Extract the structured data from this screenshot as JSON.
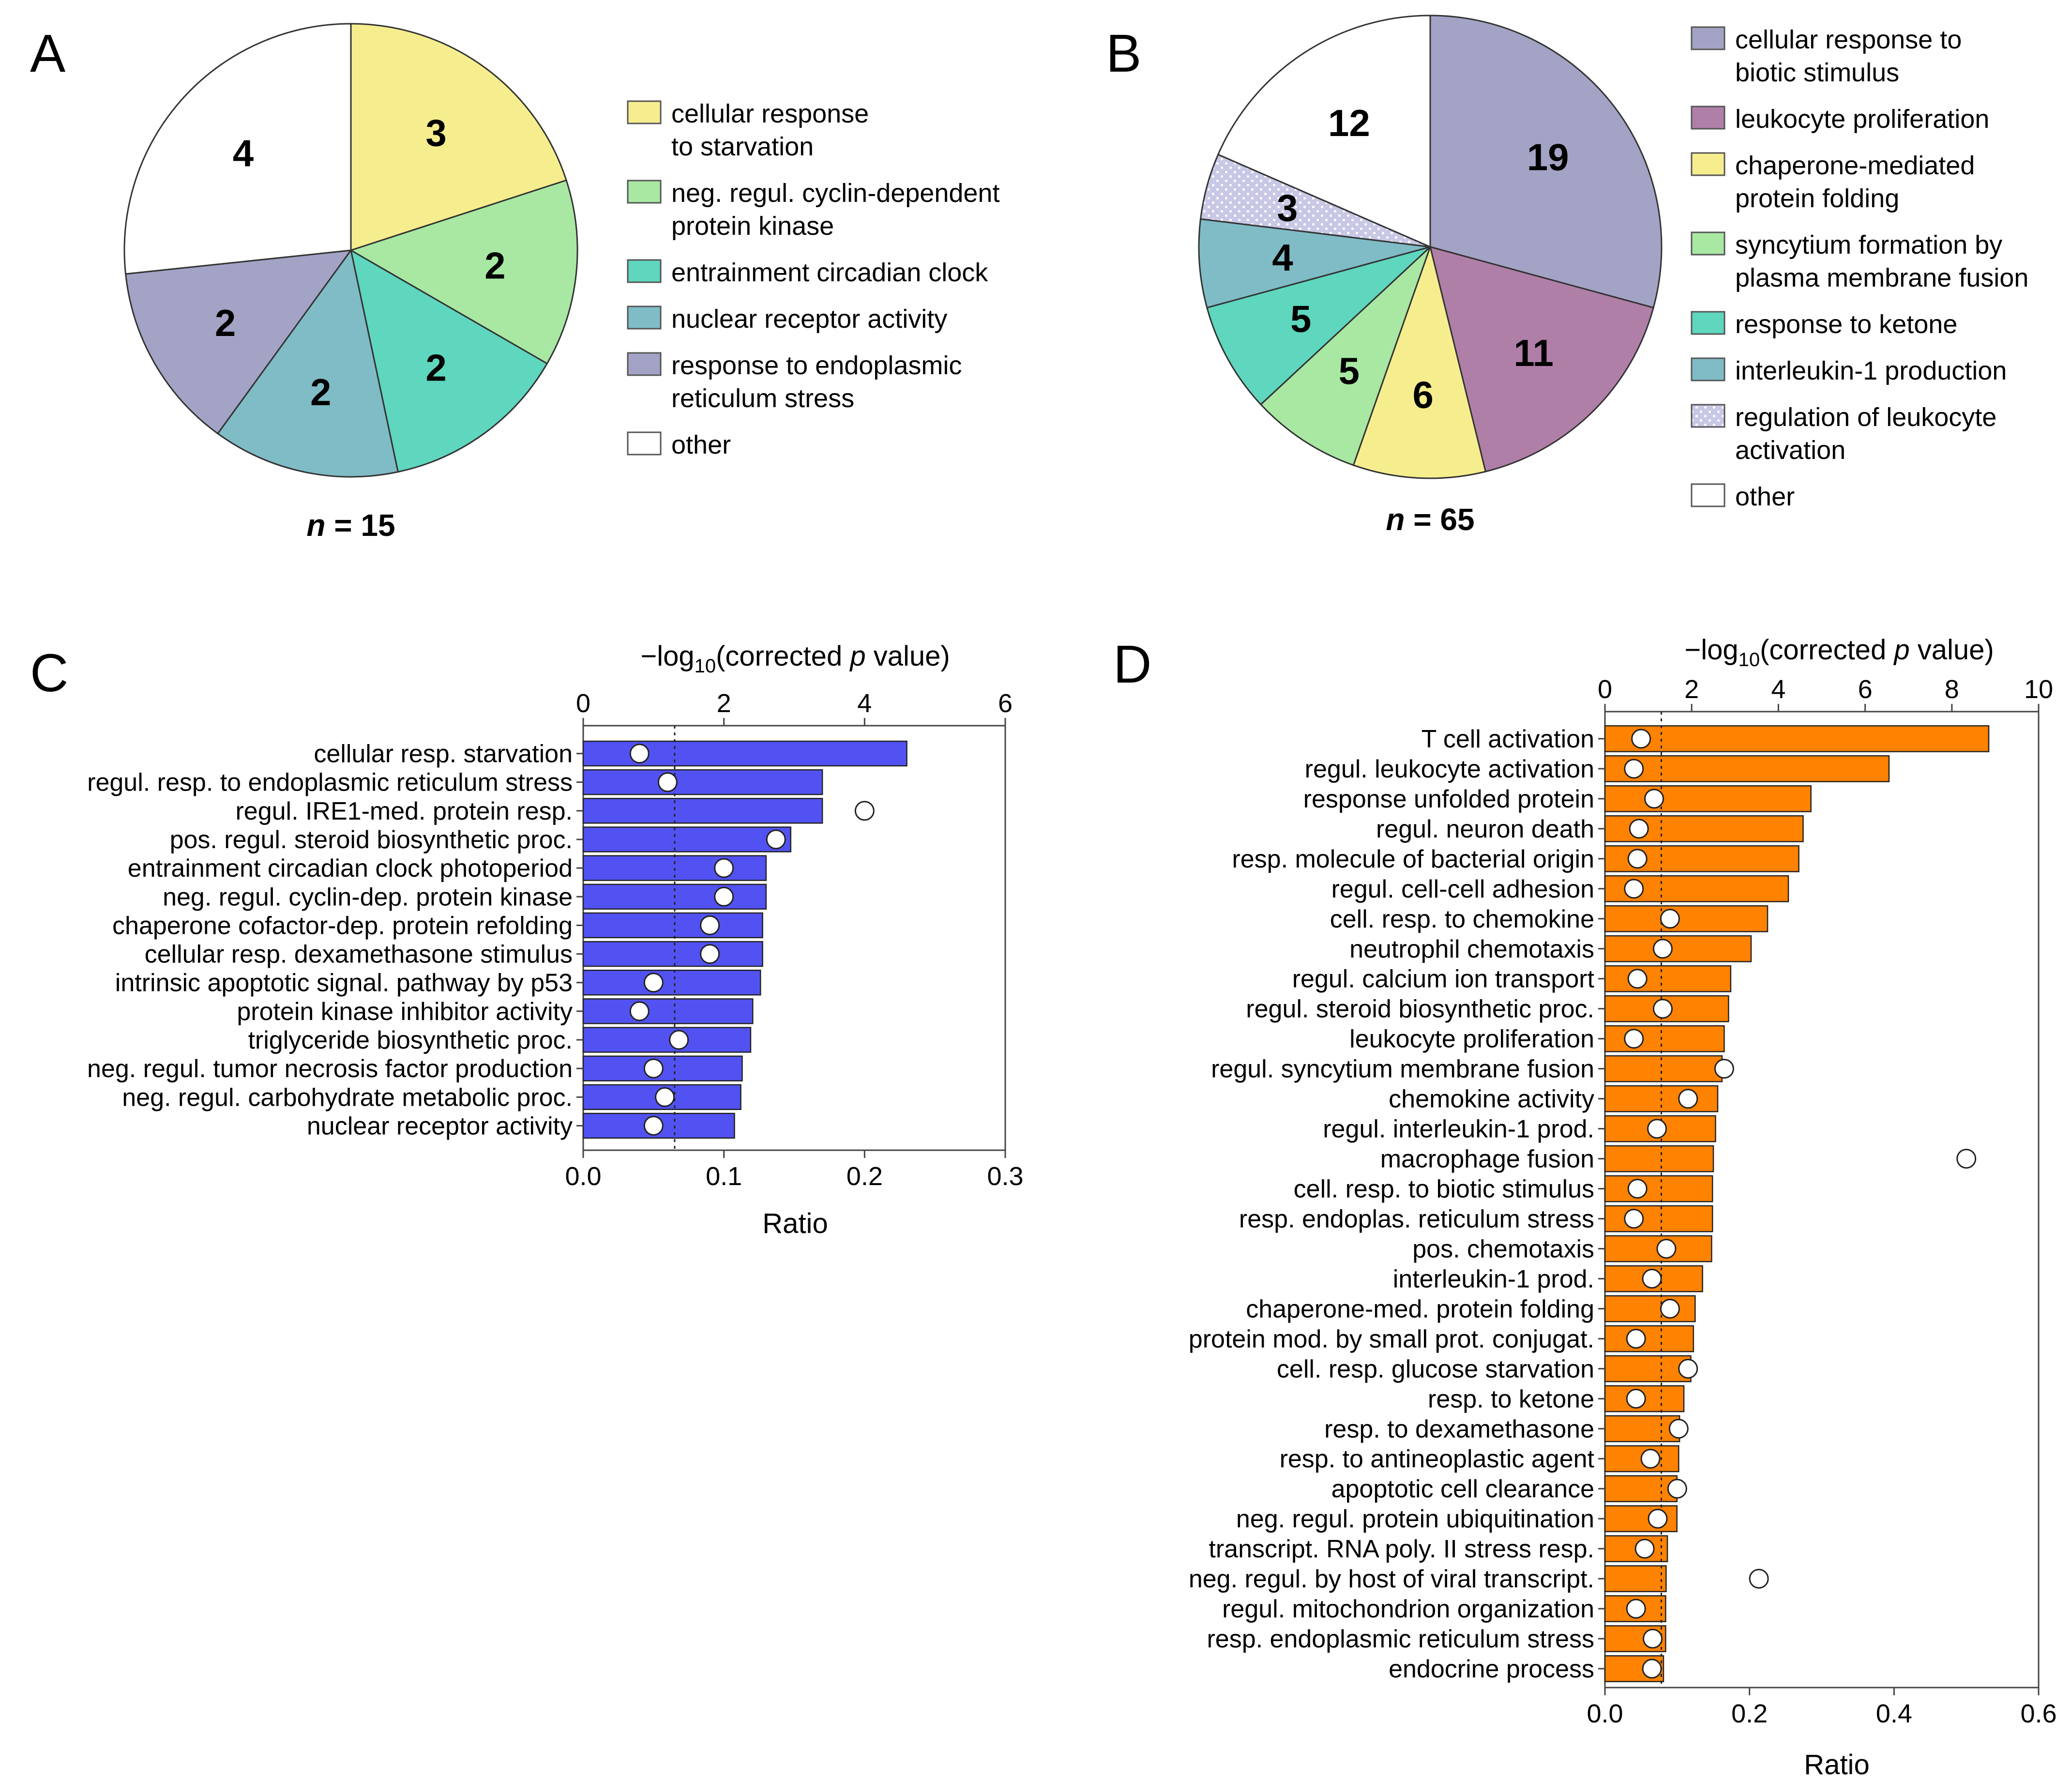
{
  "colors": {
    "yellow": "#f6ee8e",
    "lightgreen": "#a8e8a3",
    "teal": "#5fd6be",
    "blue": "#7fbcc6",
    "purple": "#a3a3c6",
    "magenta": "#b07fa8",
    "white": "#ffffff",
    "bar_c": "#5252f2",
    "bar_d": "#ff8200",
    "dotted": "#c8c8e6"
  },
  "panels": {
    "a": "A",
    "b": "B",
    "c": "C",
    "d": "D"
  },
  "chart_data": [
    {
      "panel": "A",
      "type": "pie",
      "n_label": "n = 15",
      "n_italic": "n",
      "n_rest": " = 15",
      "slices": [
        {
          "label": "cellular response to starvation",
          "value": 3,
          "color": "yellow"
        },
        {
          "label": "neg. regul. cyclin-dependent protein kinase",
          "value": 2,
          "color": "lightgreen"
        },
        {
          "label": "entrainment circadian clock",
          "value": 2,
          "color": "teal"
        },
        {
          "label": "nuclear receptor activity",
          "value": 2,
          "color": "blue"
        },
        {
          "label": "response to endoplasmic reticulum stress",
          "value": 2,
          "color": "purple"
        },
        {
          "label": "other",
          "value": 4,
          "color": "white"
        }
      ],
      "legend": [
        {
          "lines": [
            "cellular response",
            "to starvation"
          ],
          "color": "yellow"
        },
        {
          "lines": [
            "neg. regul. cyclin-dependent",
            "protein kinase"
          ],
          "color": "lightgreen"
        },
        {
          "lines": [
            "entrainment circadian clock"
          ],
          "color": "teal"
        },
        {
          "lines": [
            "nuclear receptor activity"
          ],
          "color": "blue"
        },
        {
          "lines": [
            "response to endoplasmic",
            "reticulum stress"
          ],
          "color": "purple"
        },
        {
          "lines": [
            "other"
          ],
          "color": "white"
        }
      ]
    },
    {
      "panel": "B",
      "type": "pie",
      "n_label": "n = 65",
      "n_italic": "n",
      "n_rest": " = 65",
      "slices": [
        {
          "label": "cellular response to biotic stimulus",
          "value": 19,
          "color": "purple"
        },
        {
          "label": "leukocyte proliferation",
          "value": 11,
          "color": "magenta"
        },
        {
          "label": "chaperone-mediated protein folding",
          "value": 6,
          "color": "yellow"
        },
        {
          "label": "syncytium formation by plasma membrane fusion",
          "value": 5,
          "color": "lightgreen"
        },
        {
          "label": "response to ketone",
          "value": 5,
          "color": "teal"
        },
        {
          "label": "interleukin-1 production",
          "value": 4,
          "color": "blue"
        },
        {
          "label": "regulation of leukocyte activation",
          "value": 3,
          "color": "dotted"
        },
        {
          "label": "other",
          "value": 12,
          "color": "white"
        }
      ],
      "legend": [
        {
          "lines": [
            "cellular response to",
            "biotic stimulus"
          ],
          "color": "purple"
        },
        {
          "lines": [
            "leukocyte proliferation"
          ],
          "color": "magenta"
        },
        {
          "lines": [
            "chaperone-mediated",
            "protein folding"
          ],
          "color": "yellow"
        },
        {
          "lines": [
            "syncytium formation by",
            "plasma membrane fusion"
          ],
          "color": "lightgreen"
        },
        {
          "lines": [
            "response to ketone"
          ],
          "color": "teal"
        },
        {
          "lines": [
            "interleukin-1 production"
          ],
          "color": "blue"
        },
        {
          "lines": [
            "regulation of leukocyte",
            "activation"
          ],
          "color": "dotted"
        },
        {
          "lines": [
            "other"
          ],
          "color": "white"
        }
      ]
    },
    {
      "panel": "C",
      "type": "bar",
      "orientation": "horizontal",
      "top_axis_title_pre": "−log",
      "top_axis_title_sub": "10",
      "top_axis_title_mid": "(corrected ",
      "top_axis_title_italic": "p",
      "top_axis_title_post": " value)",
      "top_axis": {
        "min": 0,
        "max": 6,
        "ticks": [
          0,
          2,
          4,
          6
        ],
        "tick_labels": [
          "0",
          "2",
          "4",
          "6"
        ]
      },
      "bottom_axis_title": "Ratio",
      "bottom_axis": {
        "min": 0,
        "max": 0.3,
        "ticks": [
          0,
          0.1,
          0.2,
          0.3
        ],
        "tick_labels": [
          "0.0",
          "0.1",
          "0.2",
          "0.3"
        ]
      },
      "threshold_log10p": 1.3,
      "categories": [
        "cellular resp. starvation",
        "regul. resp. to endoplasmic reticulum stress",
        "regul. IRE1-med. protein resp.",
        "pos. regul. steroid biosynthetic proc.",
        "entrainment circadian clock photoperiod",
        "neg. regul. cyclin-dep. protein kinase",
        "chaperone cofactor-dep. protein refolding",
        "cellular resp. dexamethasone stimulus",
        "intrinsic apoptotic signal. pathway by p53",
        "protein kinase inhibitor activity",
        "triglyceride biosynthetic proc.",
        "neg. regul. tumor necrosis factor production",
        "neg. regul. carbohydrate metabolic proc.",
        "nuclear receptor activity"
      ],
      "series": [
        {
          "name": "-log10(corrected p value)",
          "values": [
            4.6,
            3.4,
            3.4,
            2.95,
            2.6,
            2.6,
            2.55,
            2.55,
            2.52,
            2.41,
            2.38,
            2.26,
            2.24,
            2.15
          ]
        },
        {
          "name": "Ratio",
          "values": [
            0.04,
            0.06,
            0.2,
            0.137,
            0.1,
            0.1,
            0.09,
            0.09,
            0.05,
            0.04,
            0.068,
            0.05,
            0.058,
            0.05
          ]
        }
      ]
    },
    {
      "panel": "D",
      "type": "bar",
      "orientation": "horizontal",
      "top_axis_title_pre": "−log",
      "top_axis_title_sub": "10",
      "top_axis_title_mid": "(corrected ",
      "top_axis_title_italic": "p",
      "top_axis_title_post": " value)",
      "top_axis": {
        "min": 0,
        "max": 10,
        "ticks": [
          0,
          2,
          4,
          6,
          8,
          10
        ],
        "tick_labels": [
          "0",
          "2",
          "4",
          "6",
          "8",
          "10"
        ]
      },
      "bottom_axis_title": "Ratio",
      "bottom_axis": {
        "min": 0,
        "max": 0.6,
        "ticks": [
          0,
          0.2,
          0.4,
          0.6
        ],
        "tick_labels": [
          "0.0",
          "0.2",
          "0.4",
          "0.6"
        ]
      },
      "threshold_log10p": 1.3,
      "categories": [
        "T cell activation",
        "regul. leukocyte activation",
        "response unfolded protein",
        "regul. neuron death",
        "resp. molecule of bacterial origin",
        "regul. cell-cell adhesion",
        "cell. resp. to chemokine",
        "neutrophil chemotaxis",
        "regul. calcium ion transport",
        "regul. steroid biosynthetic proc.",
        "leukocyte proliferation",
        "regul. syncytium membrane fusion",
        "chemokine activity",
        "regul. interleukin-1 prod.",
        "macrophage fusion",
        "cell. resp. to biotic stimulus",
        "resp. endoplas. reticulum stress",
        "pos. chemotaxis",
        "interleukin-1 prod.",
        "chaperone-med. protein folding",
        "protein mod. by small prot. conjugat.",
        "cell. resp. glucose starvation",
        "resp. to ketone",
        "resp. to dexamethasone",
        "resp. to antineoplastic agent",
        "apoptotic cell clearance",
        "neg. regul. protein ubiquitination",
        "transcript. RNA poly. II stress resp.",
        "neg. regul. by host of viral transcript.",
        "regul. mitochondrion organization",
        "resp. endoplasmic reticulum stress",
        "endocrine process"
      ],
      "series": [
        {
          "name": "-log10(corrected p value)",
          "values": [
            8.85,
            6.55,
            4.75,
            4.57,
            4.47,
            4.23,
            3.75,
            3.37,
            2.9,
            2.85,
            2.75,
            2.7,
            2.6,
            2.55,
            2.5,
            2.48,
            2.48,
            2.46,
            2.25,
            2.08,
            2.04,
            1.98,
            1.82,
            1.72,
            1.7,
            1.66,
            1.66,
            1.44,
            1.41,
            1.4,
            1.4,
            1.35
          ]
        },
        {
          "name": "Ratio",
          "values": [
            0.05,
            0.04,
            0.068,
            0.047,
            0.045,
            0.04,
            0.09,
            0.08,
            0.045,
            0.08,
            0.04,
            0.165,
            0.115,
            0.072,
            0.5,
            0.045,
            0.04,
            0.085,
            0.065,
            0.09,
            0.043,
            0.115,
            0.043,
            0.102,
            0.063,
            0.1,
            0.073,
            0.055,
            0.213,
            0.043,
            0.066,
            0.065
          ]
        }
      ]
    }
  ]
}
